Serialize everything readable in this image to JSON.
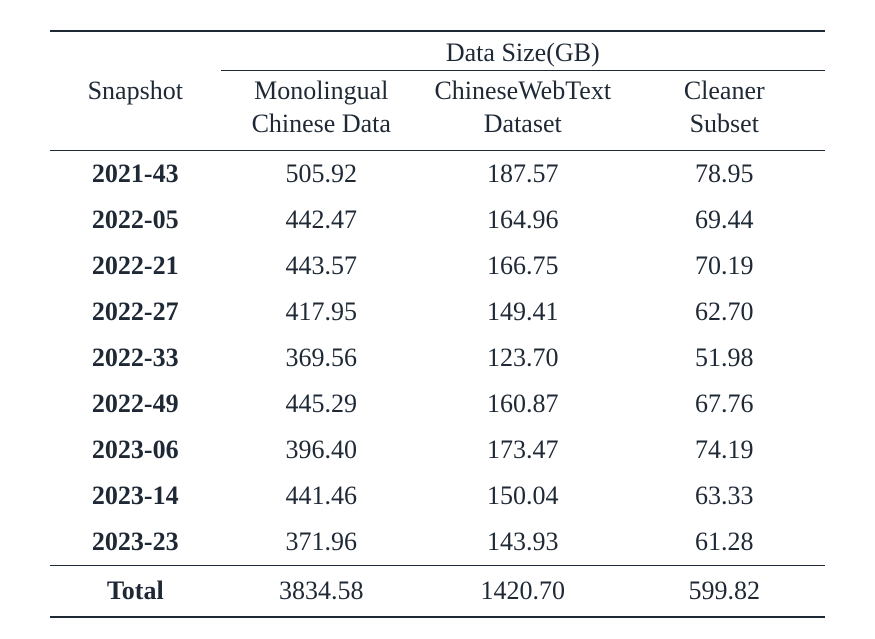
{
  "table": {
    "type": "table",
    "background_color": "#ffffff",
    "text_color": "#1e2935",
    "rule_color": "#1e2935",
    "font_family": "Times New Roman",
    "font_size_pt": 20,
    "header": {
      "snapshot_label": "Snapshot",
      "group_label": "Data Size(GB)",
      "sub_labels": {
        "monolingual_line1": "Monolingual",
        "monolingual_line2": "Chinese Data",
        "cwt_line1": "ChineseWebText",
        "cwt_line2": "Dataset",
        "cleaner_line1": "Cleaner",
        "cleaner_line2": "Subset"
      }
    },
    "columns": [
      "Snapshot",
      "Monolingual Chinese Data",
      "ChineseWebText Dataset",
      "Cleaner Subset"
    ],
    "rows": [
      {
        "snapshot": "2021-43",
        "monolingual": "505.92",
        "cwt": "187.57",
        "cleaner": "78.95"
      },
      {
        "snapshot": "2022-05",
        "monolingual": "442.47",
        "cwt": "164.96",
        "cleaner": "69.44"
      },
      {
        "snapshot": "2022-21",
        "monolingual": "443.57",
        "cwt": "166.75",
        "cleaner": "70.19"
      },
      {
        "snapshot": "2022-27",
        "monolingual": "417.95",
        "cwt": "149.41",
        "cleaner": "62.70"
      },
      {
        "snapshot": "2022-33",
        "monolingual": "369.56",
        "cwt": "123.70",
        "cleaner": "51.98"
      },
      {
        "snapshot": "2022-49",
        "monolingual": "445.29",
        "cwt": "160.87",
        "cleaner": "67.76"
      },
      {
        "snapshot": "2023-06",
        "monolingual": "396.40",
        "cwt": "173.47",
        "cleaner": "74.19"
      },
      {
        "snapshot": "2023-14",
        "monolingual": "441.46",
        "cwt": "150.04",
        "cleaner": "63.33"
      },
      {
        "snapshot": "2023-23",
        "monolingual": "371.96",
        "cwt": "143.93",
        "cleaner": "61.28"
      }
    ],
    "total": {
      "label": "Total",
      "monolingual": "3834.58",
      "cwt": "1420.70",
      "cleaner": "599.82"
    }
  }
}
